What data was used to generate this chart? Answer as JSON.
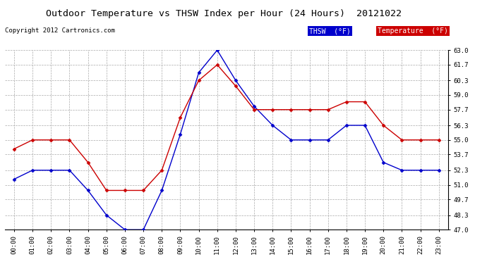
{
  "title": "Outdoor Temperature vs THSW Index per Hour (24 Hours)  20121022",
  "copyright": "Copyright 2012 Cartronics.com",
  "hours": [
    "00:00",
    "01:00",
    "02:00",
    "03:00",
    "04:00",
    "05:00",
    "06:00",
    "07:00",
    "08:00",
    "09:00",
    "10:00",
    "11:00",
    "12:00",
    "13:00",
    "14:00",
    "15:00",
    "16:00",
    "17:00",
    "18:00",
    "19:00",
    "20:00",
    "21:00",
    "22:00",
    "23:00"
  ],
  "thsw": [
    51.5,
    52.3,
    52.3,
    52.3,
    50.5,
    48.3,
    47.0,
    47.0,
    50.5,
    55.5,
    61.0,
    63.0,
    60.3,
    58.0,
    56.3,
    55.0,
    55.0,
    55.0,
    56.3,
    56.3,
    53.0,
    52.3,
    52.3,
    52.3
  ],
  "temperature": [
    54.2,
    55.0,
    55.0,
    55.0,
    53.0,
    50.5,
    50.5,
    50.5,
    52.3,
    57.0,
    60.3,
    61.7,
    59.8,
    57.7,
    57.7,
    57.7,
    57.7,
    57.7,
    58.4,
    58.4,
    56.3,
    55.0,
    55.0,
    55.0
  ],
  "ylim": [
    47.0,
    63.0
  ],
  "yticks": [
    47.0,
    48.3,
    49.7,
    51.0,
    52.3,
    53.7,
    55.0,
    56.3,
    57.7,
    59.0,
    60.3,
    61.7,
    63.0
  ],
  "thsw_color": "#0000cc",
  "temp_color": "#cc0000",
  "bg_color": "#ffffff",
  "grid_color": "#aaaaaa",
  "legend_thsw_bg": "#0000cc",
  "legend_temp_bg": "#cc0000",
  "legend_thsw_label": "THSW  (°F)",
  "legend_temp_label": "Temperature  (°F)"
}
